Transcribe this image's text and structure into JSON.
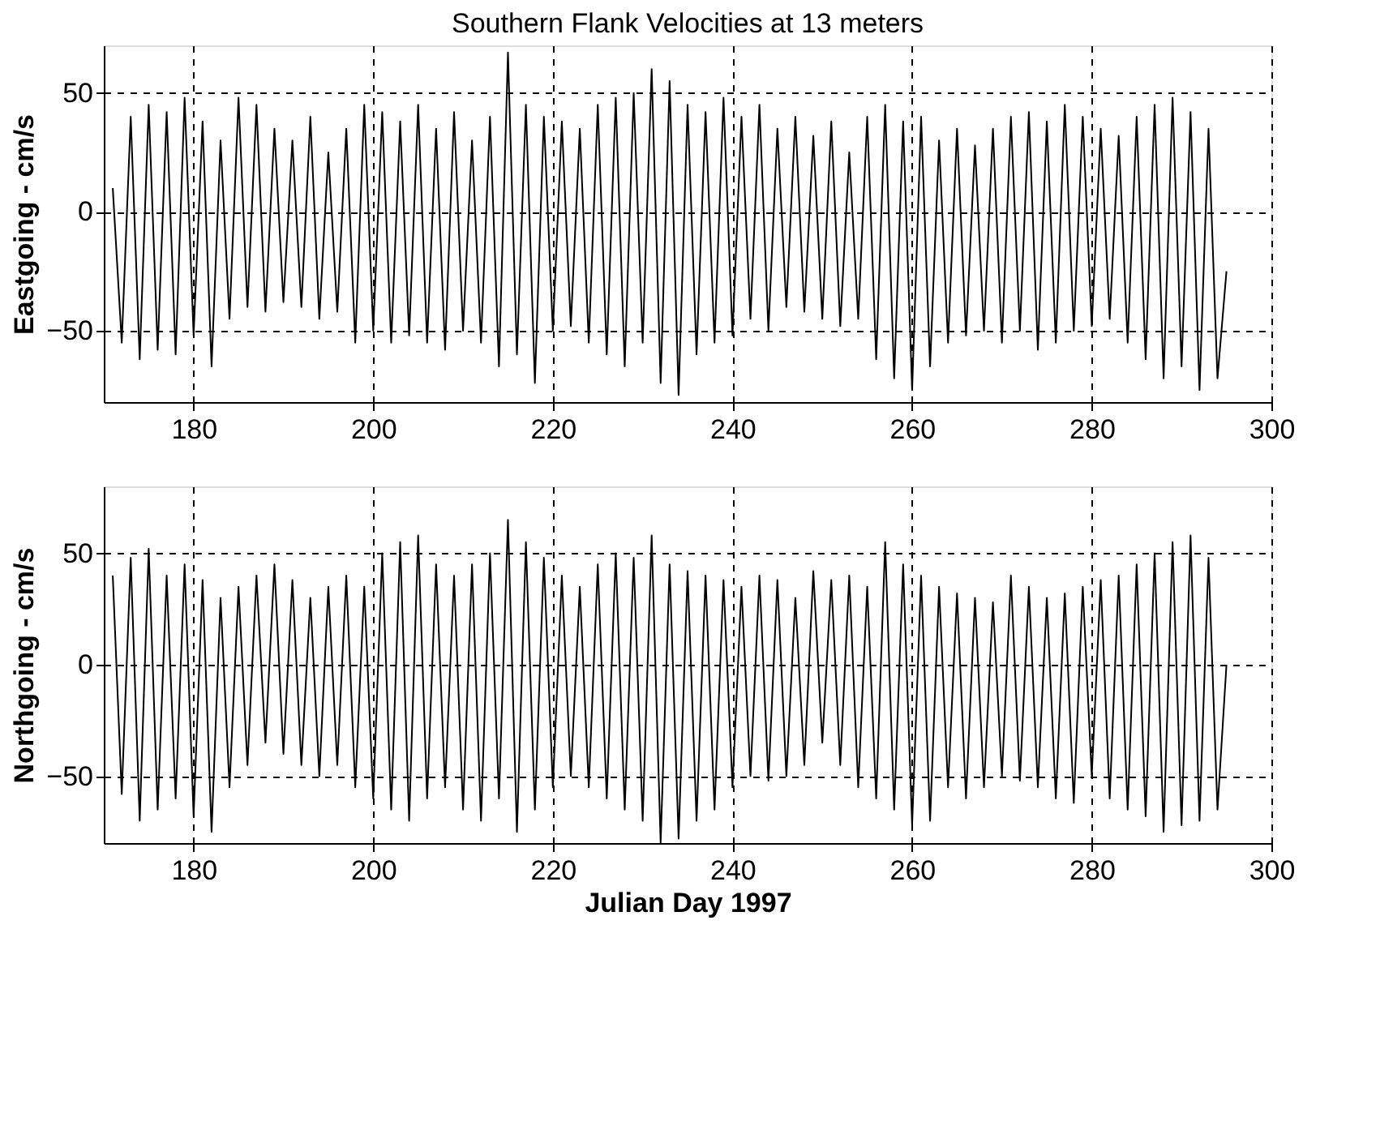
{
  "chart_data": [
    {
      "type": "line",
      "title": "Southern Flank Velocities at 13 meters",
      "ylabel": "Eastgoing - cm/s",
      "x": [
        171,
        172,
        173,
        174,
        175,
        176,
        177,
        178,
        179,
        180,
        181,
        182,
        183,
        184,
        185,
        186,
        187,
        188,
        189,
        190,
        191,
        192,
        193,
        194,
        195,
        196,
        197,
        198,
        199,
        200,
        201,
        202,
        203,
        204,
        205,
        206,
        207,
        208,
        209,
        210,
        211,
        212,
        213,
        214,
        215,
        216,
        217,
        218,
        219,
        220,
        221,
        222,
        223,
        224,
        225,
        226,
        227,
        228,
        229,
        230,
        231,
        232,
        233,
        234,
        235,
        236,
        237,
        238,
        239,
        240,
        241,
        242,
        243,
        244,
        245,
        246,
        247,
        248,
        249,
        250,
        251,
        252,
        253,
        254,
        255,
        256,
        257,
        258,
        259,
        260,
        261,
        262,
        263,
        264,
        265,
        266,
        267,
        268,
        269,
        270,
        271,
        272,
        273,
        274,
        275,
        276,
        277,
        278,
        279,
        280,
        281,
        282,
        283,
        284,
        285,
        286,
        287,
        288,
        289,
        290,
        291,
        292,
        293,
        294,
        295
      ],
      "series": [
        {
          "color": "#000000",
          "values": [
            10,
            -55,
            40,
            -62,
            45,
            -58,
            42,
            -60,
            48,
            -52,
            38,
            -65,
            30,
            -45,
            48,
            -40,
            45,
            -42,
            35,
            -38,
            30,
            -40,
            40,
            -45,
            25,
            -42,
            35,
            -55,
            45,
            -50,
            42,
            -55,
            38,
            -52,
            45,
            -55,
            35,
            -58,
            42,
            -50,
            30,
            -55,
            40,
            -65,
            67,
            -60,
            45,
            -72,
            40,
            -50,
            38,
            -48,
            35,
            -55,
            45,
            -60,
            48,
            -65,
            50,
            -55,
            60,
            -72,
            55,
            -77,
            45,
            -60,
            42,
            -55,
            48,
            -52,
            40,
            -45,
            45,
            -50,
            35,
            -40,
            40,
            -42,
            32,
            -45,
            38,
            -48,
            25,
            -45,
            40,
            -62,
            45,
            -70,
            38,
            -75,
            40,
            -65,
            30,
            -55,
            35,
            -52,
            28,
            -50,
            35,
            -55,
            40,
            -50,
            42,
            -58,
            38,
            -55,
            45,
            -50,
            40,
            -48,
            35,
            -45,
            32,
            -55,
            40,
            -62,
            45,
            -70,
            48,
            -65,
            42,
            -75,
            35,
            -70,
            -25
          ]
        }
      ],
      "xlim": [
        170,
        300
      ],
      "xticks": [
        180,
        200,
        220,
        240,
        260,
        280,
        300
      ],
      "ylim": [
        -80,
        70
      ],
      "yticks": [
        -50,
        0,
        50
      ],
      "grid": true,
      "line_style": "solid",
      "marker": "none"
    },
    {
      "type": "line",
      "xlabel": "Julian Day 1997",
      "ylabel": "Northgoing - cm/s",
      "x": [
        171,
        172,
        173,
        174,
        175,
        176,
        177,
        178,
        179,
        180,
        181,
        182,
        183,
        184,
        185,
        186,
        187,
        188,
        189,
        190,
        191,
        192,
        193,
        194,
        195,
        196,
        197,
        198,
        199,
        200,
        201,
        202,
        203,
        204,
        205,
        206,
        207,
        208,
        209,
        210,
        211,
        212,
        213,
        214,
        215,
        216,
        217,
        218,
        219,
        220,
        221,
        222,
        223,
        224,
        225,
        226,
        227,
        228,
        229,
        230,
        231,
        232,
        233,
        234,
        235,
        236,
        237,
        238,
        239,
        240,
        241,
        242,
        243,
        244,
        245,
        246,
        247,
        248,
        249,
        250,
        251,
        252,
        253,
        254,
        255,
        256,
        257,
        258,
        259,
        260,
        261,
        262,
        263,
        264,
        265,
        266,
        267,
        268,
        269,
        270,
        271,
        272,
        273,
        274,
        275,
        276,
        277,
        278,
        279,
        280,
        281,
        282,
        283,
        284,
        285,
        286,
        287,
        288,
        289,
        290,
        291,
        292,
        293,
        294,
        295
      ],
      "series": [
        {
          "color": "#000000",
          "values": [
            40,
            -58,
            48,
            -70,
            52,
            -65,
            40,
            -60,
            45,
            -68,
            38,
            -75,
            30,
            -55,
            35,
            -45,
            40,
            -35,
            45,
            -40,
            38,
            -45,
            30,
            -50,
            35,
            -45,
            40,
            -55,
            35,
            -60,
            50,
            -65,
            55,
            -70,
            58,
            -60,
            45,
            -55,
            40,
            -65,
            45,
            -70,
            50,
            -60,
            65,
            -75,
            55,
            -65,
            48,
            -55,
            40,
            -50,
            35,
            -55,
            45,
            -60,
            50,
            -65,
            48,
            -70,
            58,
            -80,
            45,
            -78,
            42,
            -70,
            40,
            -65,
            38,
            -55,
            35,
            -50,
            40,
            -52,
            38,
            -50,
            30,
            -45,
            42,
            -35,
            38,
            -45,
            40,
            -55,
            35,
            -60,
            55,
            -65,
            45,
            -72,
            40,
            -70,
            35,
            -55,
            32,
            -60,
            30,
            -55,
            28,
            -50,
            40,
            -52,
            35,
            -55,
            30,
            -60,
            32,
            -62,
            35,
            -50,
            38,
            -60,
            40,
            -65,
            45,
            -68,
            50,
            -75,
            55,
            -72,
            58,
            -70,
            48,
            -65,
            0
          ]
        }
      ],
      "xlim": [
        170,
        300
      ],
      "xticks": [
        180,
        200,
        220,
        240,
        260,
        280,
        300
      ],
      "ylim": [
        -80,
        80
      ],
      "yticks": [
        -50,
        0,
        50
      ],
      "grid": true,
      "line_style": "solid",
      "marker": "none"
    }
  ]
}
